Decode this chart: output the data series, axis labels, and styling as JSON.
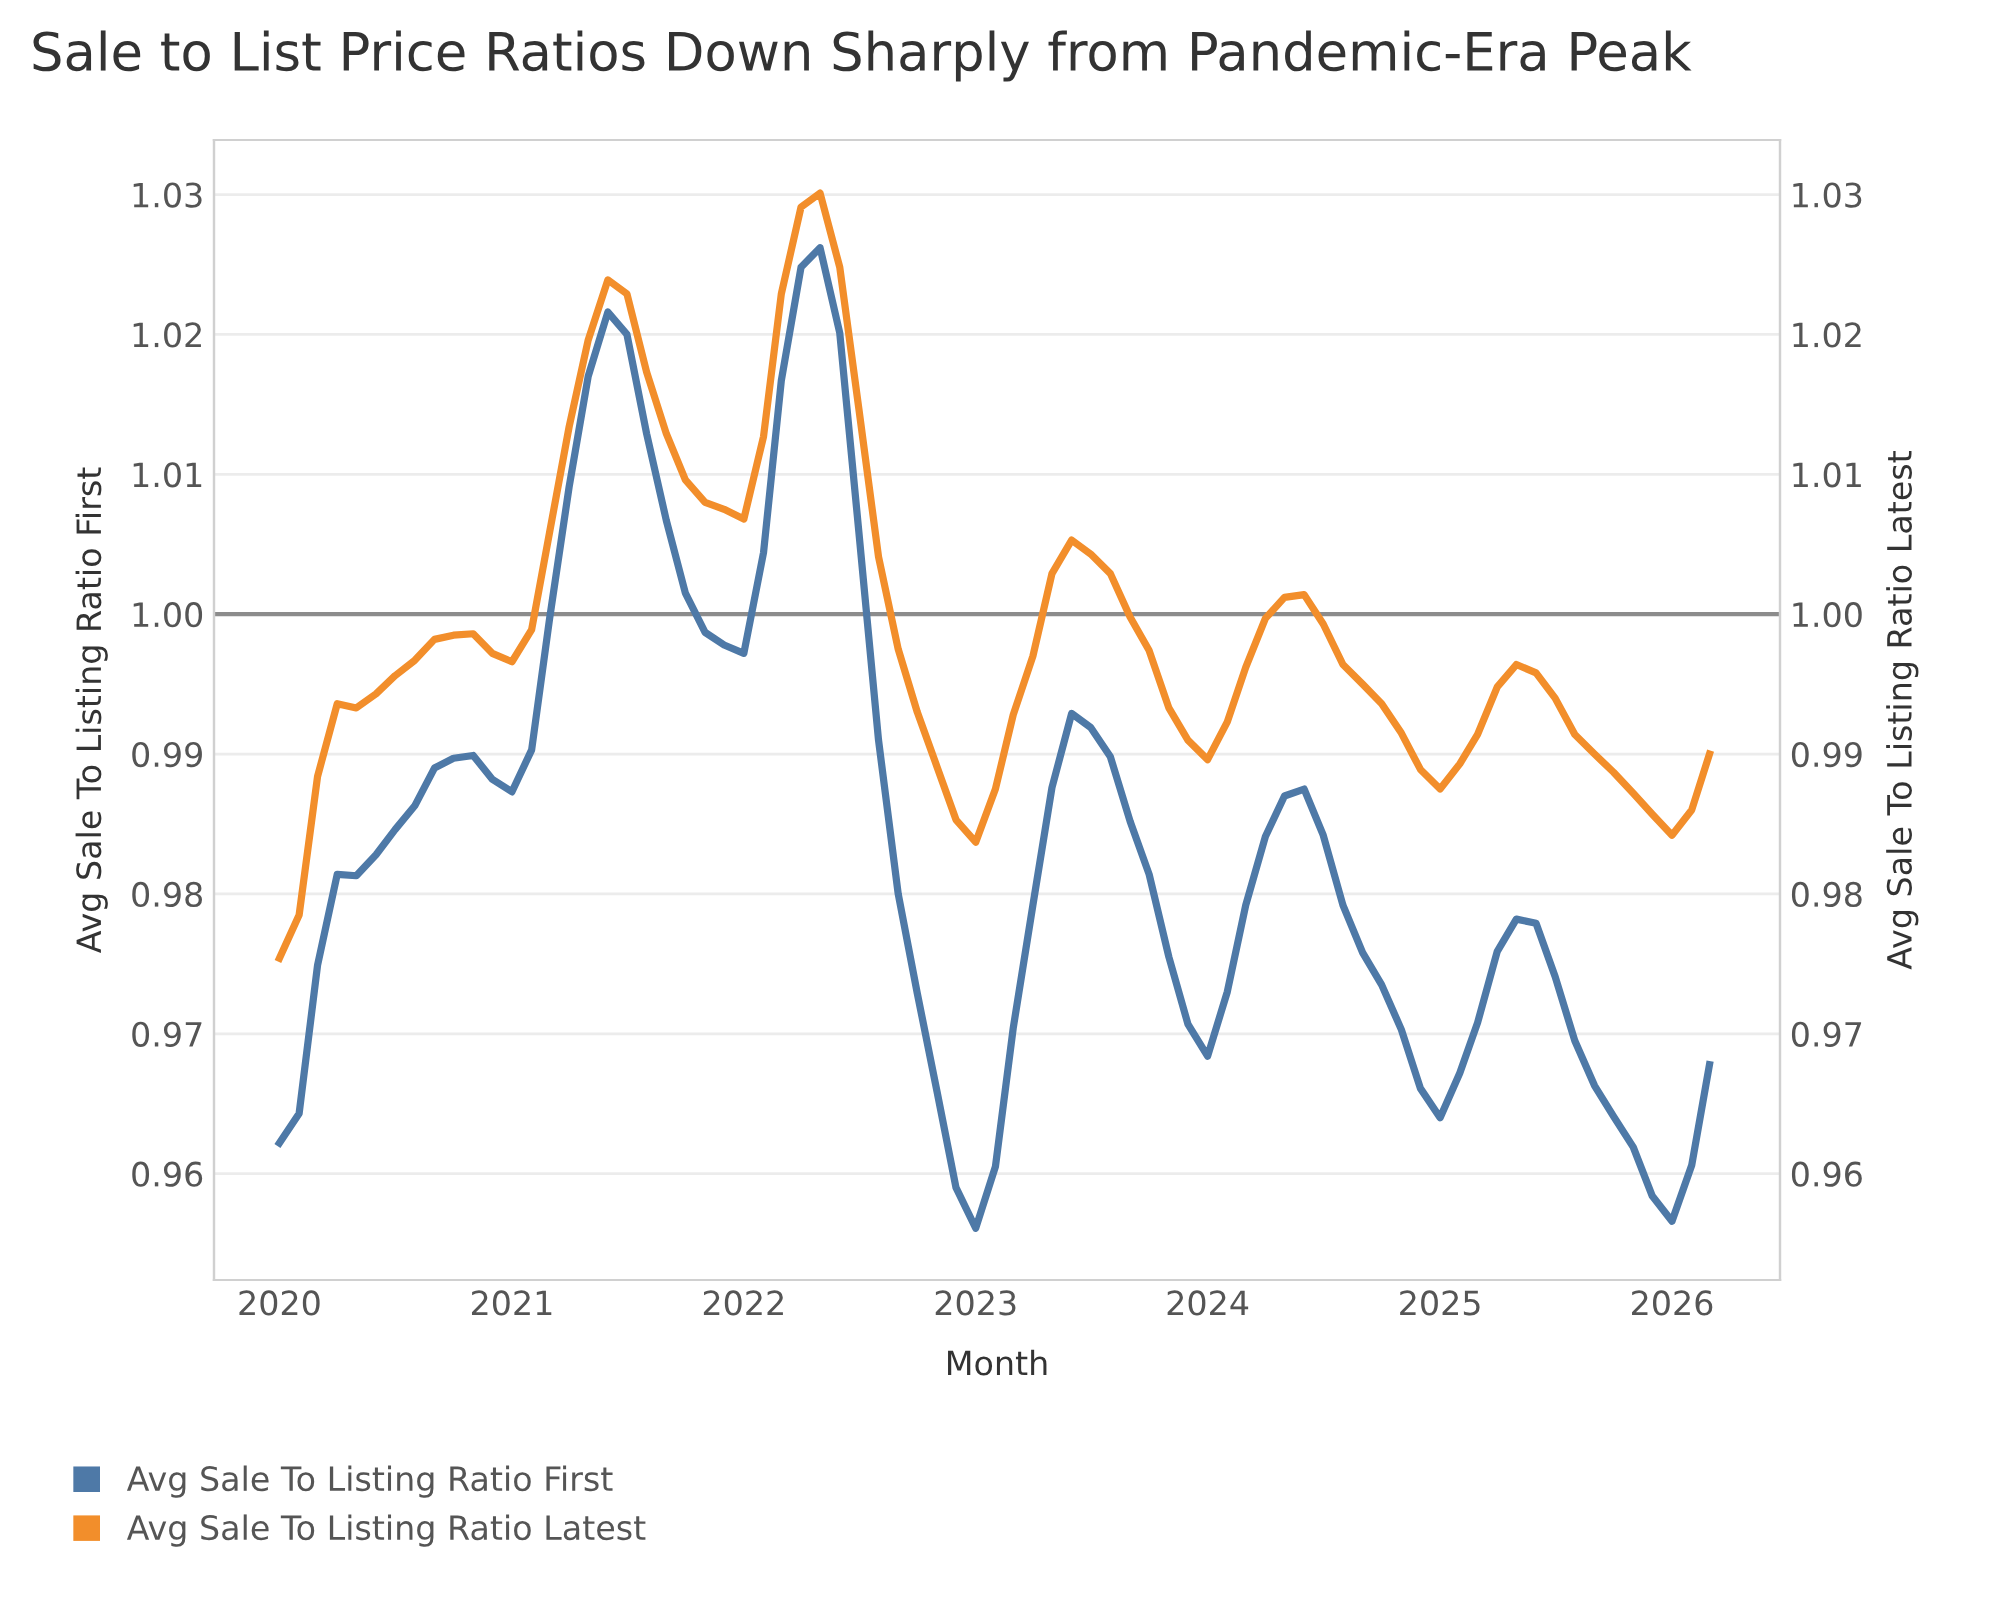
{
  "chart_data": {
    "type": "line",
    "title": "Sale to List Price Ratios Down Sharply from Pandemic-Era Peak",
    "xlabel": "Month",
    "ylabel": "Avg Sale To Listing Ratio First",
    "y2label": "Avg Sale To Listing Ratio Latest",
    "x": [
      "2020-01",
      "2020-02",
      "2020-03",
      "2020-04",
      "2020-05",
      "2020-06",
      "2020-07",
      "2020-08",
      "2020-09",
      "2020-10",
      "2020-11",
      "2020-12",
      "2021-01",
      "2021-02",
      "2021-03",
      "2021-04",
      "2021-05",
      "2021-06",
      "2021-07",
      "2021-08",
      "2021-09",
      "2021-10",
      "2021-11",
      "2021-12",
      "2022-01",
      "2022-02",
      "2022-03",
      "2022-04",
      "2022-05",
      "2022-06",
      "2022-07",
      "2022-08",
      "2022-09",
      "2022-10",
      "2022-11",
      "2022-12",
      "2023-01",
      "2023-02",
      "2023-03",
      "2023-04",
      "2023-05",
      "2023-06",
      "2023-07",
      "2023-08",
      "2023-09",
      "2023-10",
      "2023-11",
      "2023-12",
      "2024-01",
      "2024-02",
      "2024-03",
      "2024-04",
      "2024-05",
      "2024-06",
      "2024-07",
      "2024-08",
      "2024-09",
      "2024-10",
      "2024-11",
      "2024-12",
      "2025-01",
      "2025-02",
      "2025-03",
      "2025-04",
      "2025-05",
      "2025-06",
      "2025-07",
      "2025-08",
      "2025-09",
      "2025-10",
      "2025-11",
      "2025-12",
      "2026-01",
      "2026-02",
      "2026-03"
    ],
    "series": [
      {
        "name": "Avg Sale To Listing Ratio First",
        "color": "#4e79a7",
        "values": [
          0.9622,
          0.9643,
          0.9749,
          0.9814,
          0.9813,
          0.9828,
          0.9846,
          0.9863,
          0.989,
          0.9897,
          0.9899,
          0.9882,
          0.9873,
          0.9903,
          0.9996,
          1.0091,
          1.017,
          1.0216,
          1.02,
          1.0129,
          1.0067,
          1.0015,
          0.9987,
          0.9978,
          0.9972,
          1.0044,
          1.0167,
          1.0248,
          1.0262,
          1.0201,
          1.0059,
          0.991,
          0.98,
          0.9729,
          0.9659,
          0.959,
          0.9561,
          0.9605,
          0.9704,
          0.9792,
          0.9876,
          0.9929,
          0.9919,
          0.9898,
          0.9852,
          0.9814,
          0.9755,
          0.9707,
          0.9684,
          0.973,
          0.9792,
          0.9841,
          0.987,
          0.9875,
          0.9842,
          0.9792,
          0.9758,
          0.9735,
          0.9703,
          0.9661,
          0.964,
          0.9672,
          0.9708,
          0.9759,
          0.9782,
          0.9779,
          0.9741,
          0.9695,
          0.9663,
          0.9641,
          0.9619,
          0.9584,
          0.9566,
          0.9606,
          0.9678
        ]
      },
      {
        "name": "Avg Sale To Listing Ratio Latest",
        "color": "#f28e2b",
        "values": [
          0.9754,
          0.9785,
          0.9884,
          0.9936,
          0.9933,
          0.9943,
          0.9956,
          0.9967,
          0.9982,
          0.9985,
          0.9986,
          0.9972,
          0.9966,
          0.9989,
          1.0058,
          1.0134,
          1.0196,
          1.0239,
          1.0229,
          1.0173,
          1.0129,
          1.0096,
          1.008,
          1.0075,
          1.0068,
          1.0127,
          1.0229,
          1.0291,
          1.0301,
          1.0248,
          1.0147,
          1.0041,
          0.9975,
          0.993,
          0.9891,
          0.9853,
          0.9837,
          0.9875,
          0.9928,
          0.997,
          1.0029,
          1.0053,
          1.0043,
          1.0029,
          0.9998,
          0.9974,
          0.9933,
          0.991,
          0.9896,
          0.9923,
          0.9962,
          0.9997,
          1.0012,
          1.0014,
          0.9993,
          0.9964,
          0.995,
          0.9936,
          0.9915,
          0.9889,
          0.9875,
          0.9893,
          0.9914,
          0.9948,
          0.9964,
          0.9958,
          0.994,
          0.9914,
          0.99,
          0.9887,
          0.9872,
          0.9857,
          0.9842,
          0.986,
          0.99
        ]
      }
    ],
    "xlim": [
      "2019-09-20",
      "2026-06-20"
    ],
    "xticks": [
      "2020",
      "2021",
      "2022",
      "2023",
      "2024",
      "2025",
      "2026"
    ],
    "ylim": [
      0.9524,
      1.0339
    ],
    "yticks": [
      {
        "value": 0.96,
        "label": "0.96"
      },
      {
        "value": 0.97,
        "label": "0.97"
      },
      {
        "value": 0.98,
        "label": "0.98"
      },
      {
        "value": 0.99,
        "label": "0.99"
      },
      {
        "value": 1.0,
        "label": "1.00"
      },
      {
        "value": 1.01,
        "label": "1.01"
      },
      {
        "value": 1.02,
        "label": "1.02"
      },
      {
        "value": 1.03,
        "label": "1.03"
      }
    ],
    "y2lim": [
      0.9524,
      1.0339
    ],
    "y2ticks": [
      {
        "value": 0.96,
        "label": "0.96"
      },
      {
        "value": 0.97,
        "label": "0.97"
      },
      {
        "value": 0.98,
        "label": "0.98"
      },
      {
        "value": 0.99,
        "label": "0.99"
      },
      {
        "value": 1.0,
        "label": "1.00"
      },
      {
        "value": 1.01,
        "label": "1.01"
      },
      {
        "value": 1.02,
        "label": "1.02"
      },
      {
        "value": 1.03,
        "label": "1.03"
      }
    ],
    "ref_lines": [
      {
        "axis": "y",
        "value": 1.0,
        "color": "#8c8c8c"
      }
    ],
    "grid": "y",
    "legend": "bottom left",
    "marker": "none",
    "line_style": "solid"
  }
}
